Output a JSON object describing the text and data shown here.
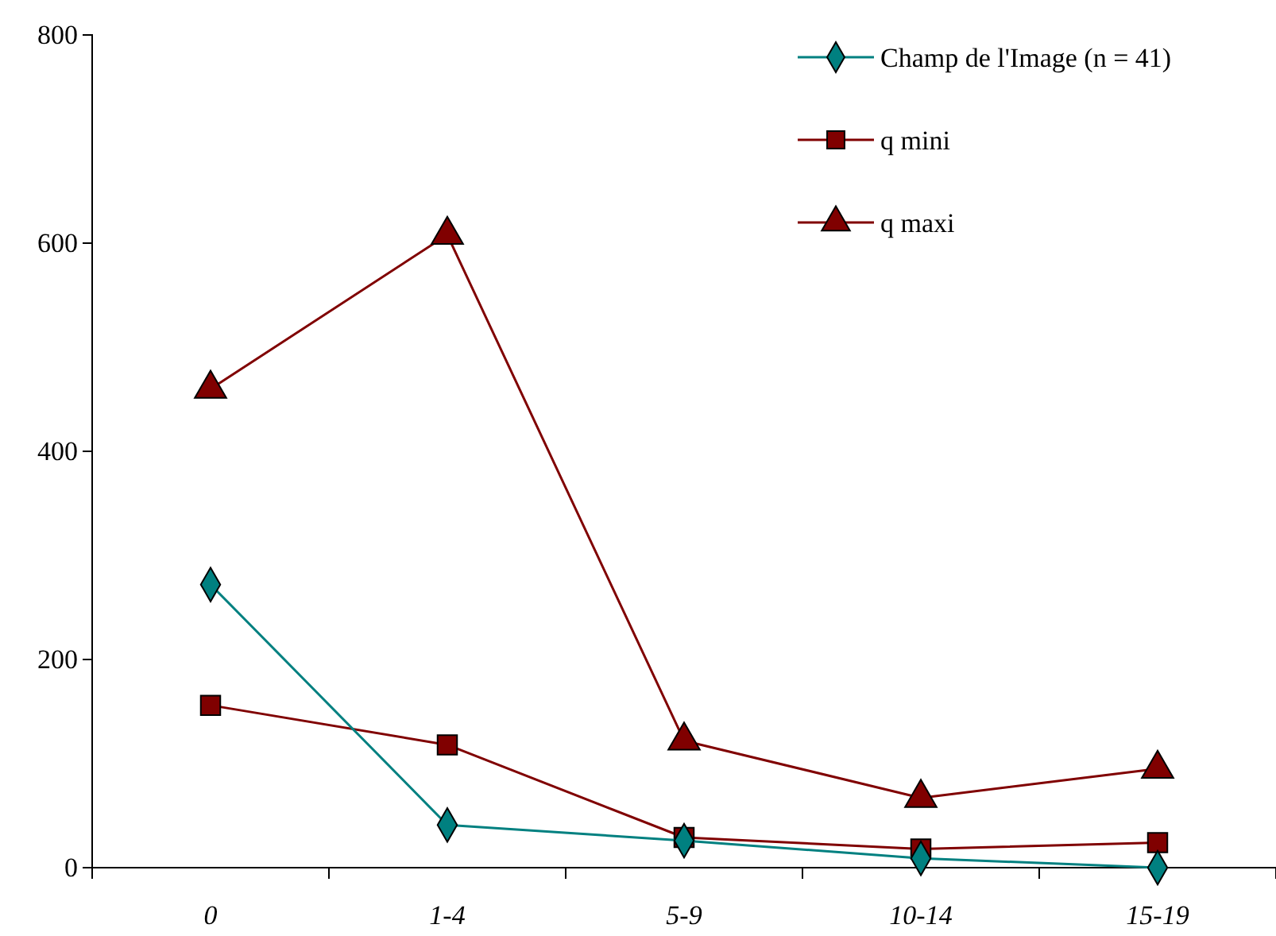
{
  "chart_data": {
    "type": "line",
    "categories": [
      "0",
      "1-4",
      "5-9",
      "10-14",
      "15-19"
    ],
    "series": [
      {
        "name": "Champ de l'Image (n = 41)",
        "color": "#008080",
        "marker": "diamond",
        "values": [
          272,
          41,
          26,
          9,
          0
        ]
      },
      {
        "name": "q mini",
        "color": "#800000",
        "marker": "square",
        "values": [
          156,
          118,
          29,
          18,
          24
        ]
      },
      {
        "name": "q maxi",
        "color": "#800000",
        "marker": "triangle",
        "values": [
          460,
          608,
          122,
          67,
          95
        ]
      }
    ],
    "ylim": [
      0,
      800
    ],
    "yticks": [
      0,
      200,
      400,
      600,
      800
    ],
    "grid": false,
    "legend": "top right"
  }
}
